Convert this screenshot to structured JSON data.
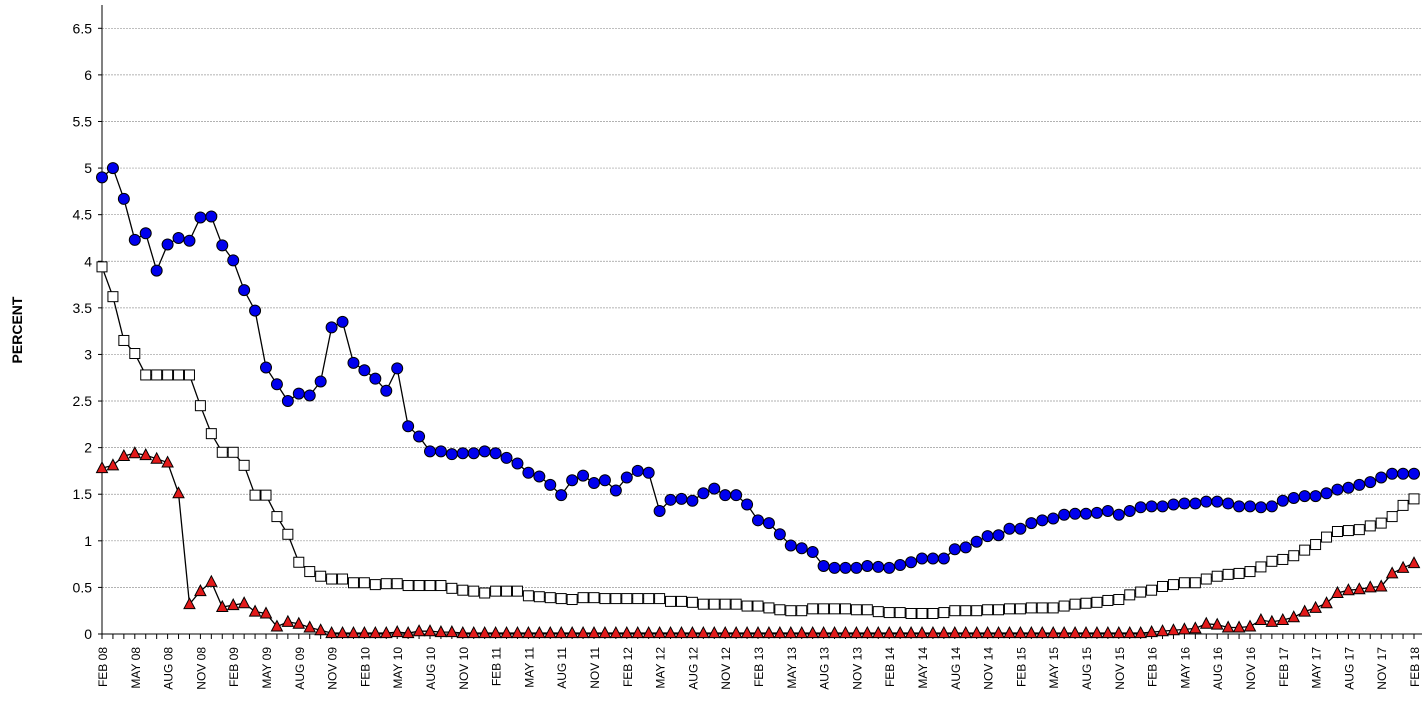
{
  "chart_data": {
    "type": "line",
    "y_label": "PERCENT",
    "categories": [
      "FEB 08",
      null,
      null,
      "MAY 08",
      null,
      null,
      "AUG 08",
      null,
      null,
      "NOV 08",
      null,
      null,
      "FEB 09",
      null,
      null,
      "MAY 09",
      null,
      null,
      "AUG 09",
      null,
      null,
      "NOV 09",
      null,
      null,
      "FEB 10",
      null,
      null,
      "MAY 10",
      null,
      null,
      "AUG 10",
      null,
      null,
      "NOV 10",
      null,
      null,
      "FEB 11",
      null,
      null,
      "MAY 11",
      null,
      null,
      "AUG 11",
      null,
      null,
      "NOV 11",
      null,
      null,
      "FEB 12",
      null,
      null,
      "MAY 12",
      null,
      null,
      "AUG 12",
      null,
      null,
      "NOV 12",
      null,
      null,
      "FEB 13",
      null,
      null,
      "MAY 13",
      null,
      null,
      "AUG 13",
      null,
      null,
      "NOV 13",
      null,
      null,
      "FEB 14",
      null,
      null,
      "MAY 14",
      null,
      null,
      "AUG 14",
      null,
      null,
      "NOV 14",
      null,
      null,
      "FEB 15",
      null,
      null,
      "MAY 15",
      null,
      null,
      "AUG 15",
      null,
      null,
      "NOV 15",
      null,
      null,
      "FEB 16",
      null,
      null,
      "MAY 16",
      null,
      null,
      "AUG 16",
      null,
      null,
      "NOV 16",
      null,
      null,
      "FEB 17",
      null,
      null,
      "MAY 17",
      null,
      null,
      "AUG 17",
      null,
      null,
      "NOV 17",
      null,
      null,
      "FEB 18"
    ],
    "series": [
      {
        "color": "#0000ee",
        "marker": "circle",
        "values": [
          4.9,
          5.0,
          4.67,
          4.23,
          4.3,
          3.9,
          4.18,
          4.25,
          4.22,
          4.47,
          4.48,
          4.17,
          4.01,
          3.69,
          3.47,
          2.86,
          2.68,
          2.5,
          2.58,
          2.56,
          2.71,
          3.29,
          3.35,
          2.91,
          2.83,
          2.74,
          2.61,
          2.85,
          2.23,
          2.12,
          1.96,
          1.96,
          1.93,
          1.94,
          1.94,
          1.96,
          1.94,
          1.89,
          1.83,
          1.73,
          1.69,
          1.6,
          1.49,
          1.65,
          1.7,
          1.62,
          1.65,
          1.54,
          1.68,
          1.75,
          1.73,
          1.32,
          1.44,
          1.45,
          1.43,
          1.51,
          1.56,
          1.49,
          1.49,
          1.39,
          1.22,
          1.19,
          1.07,
          0.95,
          0.92,
          0.88,
          0.73,
          0.71,
          0.71,
          0.71,
          0.73,
          0.72,
          0.71,
          0.74,
          0.77,
          0.81,
          0.81,
          0.81,
          0.91,
          0.93,
          0.99,
          1.05,
          1.06,
          1.13,
          1.13,
          1.19,
          1.22,
          1.24,
          1.28,
          1.29,
          1.29,
          1.3,
          1.32,
          1.28,
          1.32,
          1.36,
          1.37,
          1.37,
          1.39,
          1.4,
          1.4,
          1.42,
          1.42,
          1.4,
          1.37,
          1.37,
          1.36,
          1.37,
          1.43,
          1.46,
          1.48,
          1.48,
          1.51,
          1.55,
          1.57,
          1.6,
          1.63,
          1.68,
          1.72,
          1.72,
          1.72
        ]
      },
      {
        "color": "#ffffff",
        "marker": "square",
        "values": [
          3.94,
          3.62,
          3.15,
          3.01,
          2.78,
          2.78,
          2.78,
          2.78,
          2.78,
          2.45,
          2.15,
          1.95,
          1.95,
          1.81,
          1.49,
          1.49,
          1.26,
          1.07,
          0.77,
          0.67,
          0.62,
          0.59,
          0.59,
          0.55,
          0.55,
          0.53,
          0.54,
          0.54,
          0.52,
          0.52,
          0.52,
          0.52,
          0.49,
          0.47,
          0.46,
          0.44,
          0.46,
          0.46,
          0.46,
          0.41,
          0.4,
          0.39,
          0.38,
          0.37,
          0.39,
          0.39,
          0.38,
          0.38,
          0.38,
          0.38,
          0.38,
          0.38,
          0.35,
          0.35,
          0.34,
          0.32,
          0.32,
          0.32,
          0.32,
          0.3,
          0.3,
          0.28,
          0.26,
          0.25,
          0.25,
          0.27,
          0.27,
          0.27,
          0.27,
          0.26,
          0.26,
          0.24,
          0.23,
          0.23,
          0.22,
          0.22,
          0.22,
          0.23,
          0.25,
          0.25,
          0.25,
          0.26,
          0.26,
          0.27,
          0.27,
          0.28,
          0.28,
          0.28,
          0.3,
          0.32,
          0.33,
          0.34,
          0.36,
          0.37,
          0.42,
          0.45,
          0.47,
          0.51,
          0.53,
          0.55,
          0.55,
          0.59,
          0.62,
          0.64,
          0.65,
          0.67,
          0.72,
          0.78,
          0.8,
          0.84,
          0.9,
          0.96,
          1.04,
          1.1,
          1.11,
          1.12,
          1.16,
          1.19,
          1.26,
          1.38,
          1.45
        ]
      },
      {
        "color": "#e31a1a",
        "marker": "triangle",
        "values": [
          1.78,
          1.81,
          1.91,
          1.94,
          1.92,
          1.88,
          1.84,
          1.51,
          0.32,
          0.46,
          0.56,
          0.29,
          0.31,
          0.33,
          0.24,
          0.22,
          0.08,
          0.13,
          0.11,
          0.07,
          0.04,
          0.01,
          0.01,
          0.01,
          0.01,
          0.01,
          0.01,
          0.02,
          0.01,
          0.03,
          0.03,
          0.02,
          0.02,
          0.01,
          0.01,
          0.01,
          0.01,
          0.01,
          0.01,
          0.01,
          0.01,
          0.01,
          0.01,
          0.01,
          0.01,
          0.01,
          0.01,
          0.01,
          0.01,
          0.01,
          0.01,
          0.01,
          0.01,
          0.01,
          0.01,
          0.01,
          0.01,
          0.01,
          0.01,
          0.01,
          0.01,
          0.01,
          0.01,
          0.01,
          0.01,
          0.01,
          0.01,
          0.01,
          0.01,
          0.01,
          0.01,
          0.01,
          0.01,
          0.01,
          0.01,
          0.01,
          0.01,
          0.01,
          0.01,
          0.01,
          0.01,
          0.01,
          0.01,
          0.01,
          0.01,
          0.01,
          0.01,
          0.01,
          0.01,
          0.01,
          0.01,
          0.01,
          0.01,
          0.01,
          0.01,
          0.01,
          0.02,
          0.03,
          0.04,
          0.05,
          0.06,
          0.11,
          0.1,
          0.07,
          0.07,
          0.08,
          0.15,
          0.13,
          0.15,
          0.18,
          0.24,
          0.28,
          0.33,
          0.44,
          0.47,
          0.48,
          0.5,
          0.51,
          0.65,
          0.71,
          0.76
        ]
      }
    ],
    "ylim": [
      0,
      6.75
    ],
    "yticks": [
      0,
      0.5,
      1,
      1.5,
      2,
      2.5,
      3,
      3.5,
      4,
      4.5,
      5,
      5.5,
      6,
      6.5
    ],
    "grid": true
  }
}
